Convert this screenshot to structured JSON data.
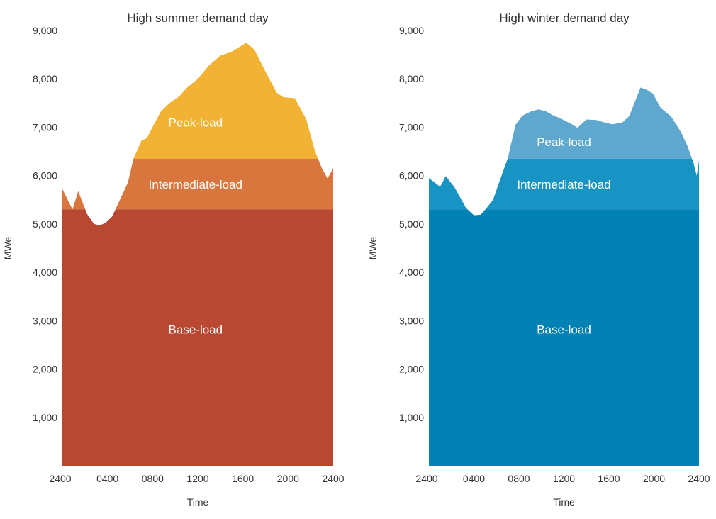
{
  "chart_data": [
    {
      "type": "area",
      "title": "High summer demand day",
      "xlabel": "Time",
      "ylabel": "MWe",
      "ylim": [
        0,
        9000
      ],
      "yticks": [
        "1,000",
        "2,000",
        "3,000",
        "4,000",
        "5,000",
        "6,000",
        "7,000",
        "8,000",
        "9,000"
      ],
      "xticks": [
        "2400",
        "0400",
        "0800",
        "1200",
        "1600",
        "2000",
        "2400"
      ],
      "xlim": [
        0,
        24
      ],
      "base_level": 5300,
      "intermediate_level": 6350,
      "colors": {
        "base": "#b94832",
        "intermediate": "#d8763e",
        "peak": "#f2b233"
      },
      "labels": {
        "base": "Base-load",
        "intermediate": "Intermediate-load",
        "peak": "Peak-load"
      },
      "label_values": {
        "base": [
          11.8,
          2800
        ],
        "intermediate": [
          11.8,
          5800
        ],
        "peak": [
          11.8,
          7080
        ]
      },
      "demand": [
        [
          0,
          5720
        ],
        [
          0.9,
          5300
        ],
        [
          1.4,
          5680
        ],
        [
          2.2,
          5200
        ],
        [
          2.8,
          5000
        ],
        [
          3.3,
          4970
        ],
        [
          3.8,
          5020
        ],
        [
          4.4,
          5150
        ],
        [
          5.1,
          5500
        ],
        [
          5.8,
          5850
        ],
        [
          6.3,
          6350
        ],
        [
          7.0,
          6720
        ],
        [
          7.5,
          6780
        ],
        [
          8.1,
          7050
        ],
        [
          8.7,
          7320
        ],
        [
          9.5,
          7500
        ],
        [
          10.4,
          7650
        ],
        [
          11.0,
          7810
        ],
        [
          12.0,
          8000
        ],
        [
          13.0,
          8280
        ],
        [
          14.0,
          8480
        ],
        [
          15.0,
          8560
        ],
        [
          16.3,
          8750
        ],
        [
          17.0,
          8610
        ],
        [
          18.0,
          8150
        ],
        [
          19.0,
          7710
        ],
        [
          19.6,
          7620
        ],
        [
          20.6,
          7600
        ],
        [
          21.6,
          7170
        ],
        [
          22.4,
          6500
        ],
        [
          23.0,
          6150
        ],
        [
          23.5,
          5940
        ],
        [
          24,
          6150
        ]
      ]
    },
    {
      "type": "area",
      "title": "High winter demand day",
      "xlabel": "Time",
      "ylabel": "MWe",
      "ylim": [
        0,
        9000
      ],
      "yticks": [
        "1,000",
        "2,000",
        "3,000",
        "4,000",
        "5,000",
        "6,000",
        "7,000",
        "8,000",
        "9,000"
      ],
      "xticks": [
        "2400",
        "0400",
        "0800",
        "1200",
        "1600",
        "2000",
        "2400"
      ],
      "xlim": [
        0,
        24
      ],
      "base_level": 5300,
      "intermediate_level": 6350,
      "colors": {
        "base": "#0281b4",
        "intermediate": "#1794c3",
        "peak": "#5ea8cf"
      },
      "labels": {
        "base": "Base-load",
        "intermediate": "Intermediate-load",
        "peak": "Peak-load"
      },
      "label_values": {
        "base": [
          12.0,
          2800
        ],
        "intermediate": [
          12.0,
          5800
        ],
        "peak": [
          12.0,
          6680
        ]
      },
      "demand": [
        [
          0,
          5950
        ],
        [
          1.0,
          5770
        ],
        [
          1.5,
          5990
        ],
        [
          2.3,
          5750
        ],
        [
          3.3,
          5330
        ],
        [
          4.0,
          5180
        ],
        [
          4.6,
          5190
        ],
        [
          5.2,
          5350
        ],
        [
          5.7,
          5500
        ],
        [
          6.3,
          5900
        ],
        [
          7.0,
          6350
        ],
        [
          7.7,
          7050
        ],
        [
          8.3,
          7240
        ],
        [
          9.0,
          7320
        ],
        [
          9.7,
          7370
        ],
        [
          10.4,
          7330
        ],
        [
          11.0,
          7250
        ],
        [
          11.8,
          7170
        ],
        [
          12.8,
          7050
        ],
        [
          13.2,
          6990
        ],
        [
          14.0,
          7160
        ],
        [
          14.9,
          7150
        ],
        [
          15.6,
          7100
        ],
        [
          16.3,
          7060
        ],
        [
          17.2,
          7100
        ],
        [
          17.8,
          7230
        ],
        [
          18.8,
          7820
        ],
        [
          19.3,
          7780
        ],
        [
          19.9,
          7700
        ],
        [
          20.6,
          7400
        ],
        [
          21.5,
          7230
        ],
        [
          21.8,
          7120
        ],
        [
          22.4,
          6900
        ],
        [
          23.0,
          6600
        ],
        [
          23.5,
          6270
        ],
        [
          23.8,
          6000
        ],
        [
          24,
          6300
        ]
      ]
    }
  ]
}
